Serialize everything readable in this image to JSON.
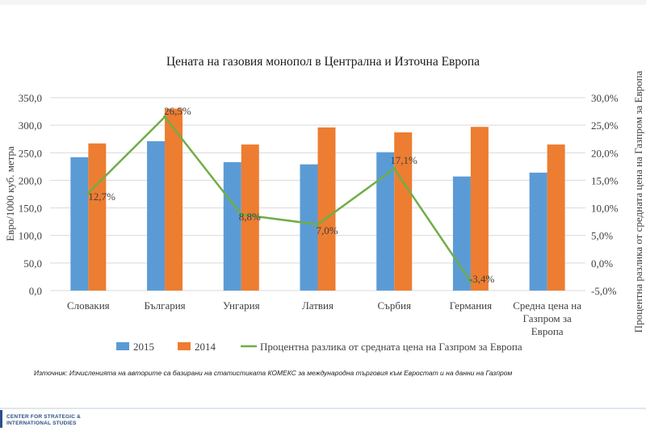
{
  "chart_data": {
    "type": "bar",
    "title": "Цената на газовия монопол в Централна и Източна Европа",
    "ylabel": "Евро/1000 куб. метра",
    "y2label": "Процентна разлика от средната цена на Газпром за Европа",
    "ylim": [
      0,
      350
    ],
    "y2lim": [
      -5,
      30
    ],
    "yticks": [
      "0,0",
      "50,0",
      "100,0",
      "150,0",
      "200,0",
      "250,0",
      "300,0",
      "350,0"
    ],
    "y2ticks": [
      "-5,0%",
      "0,0%",
      "5,0%",
      "10,0%",
      "15,0%",
      "20,0%",
      "25,0%",
      "30,0%"
    ],
    "categories": [
      [
        "Словакия"
      ],
      [
        "България"
      ],
      [
        "Унгария"
      ],
      [
        "Латвия"
      ],
      [
        "Сърбия"
      ],
      [
        "Германия"
      ],
      [
        "Средна цена на",
        "Газпром за",
        "Европа"
      ]
    ],
    "series": [
      {
        "name": "2015",
        "color": "#5b9bd5",
        "values": [
          242,
          271,
          233,
          229,
          251,
          207,
          214
        ]
      },
      {
        "name": "2014",
        "color": "#ed7d31",
        "values": [
          267,
          330,
          265,
          296,
          287,
          297,
          265
        ]
      }
    ],
    "line_series": {
      "name": "Процентна разлика от средната цена на Газпром за Европа",
      "color": "#70ad47",
      "values": [
        12.7,
        26.5,
        8.8,
        7.0,
        17.1,
        -3.4
      ],
      "labels": [
        "12,7%",
        "26,5%",
        "8,8%",
        "7,0%",
        "17,1%",
        "-3,4%"
      ]
    },
    "grid": true,
    "legend": "bottom",
    "source": "Източник: Изчисленията на авторите са базирани на статистиката КОМЕКС за международна търговия към Евростат и на данни на Газпром"
  },
  "footer": {
    "logo_line1": "CENTER FOR STRATEGIC &",
    "logo_line2": "INTERNATIONAL STUDIES"
  }
}
